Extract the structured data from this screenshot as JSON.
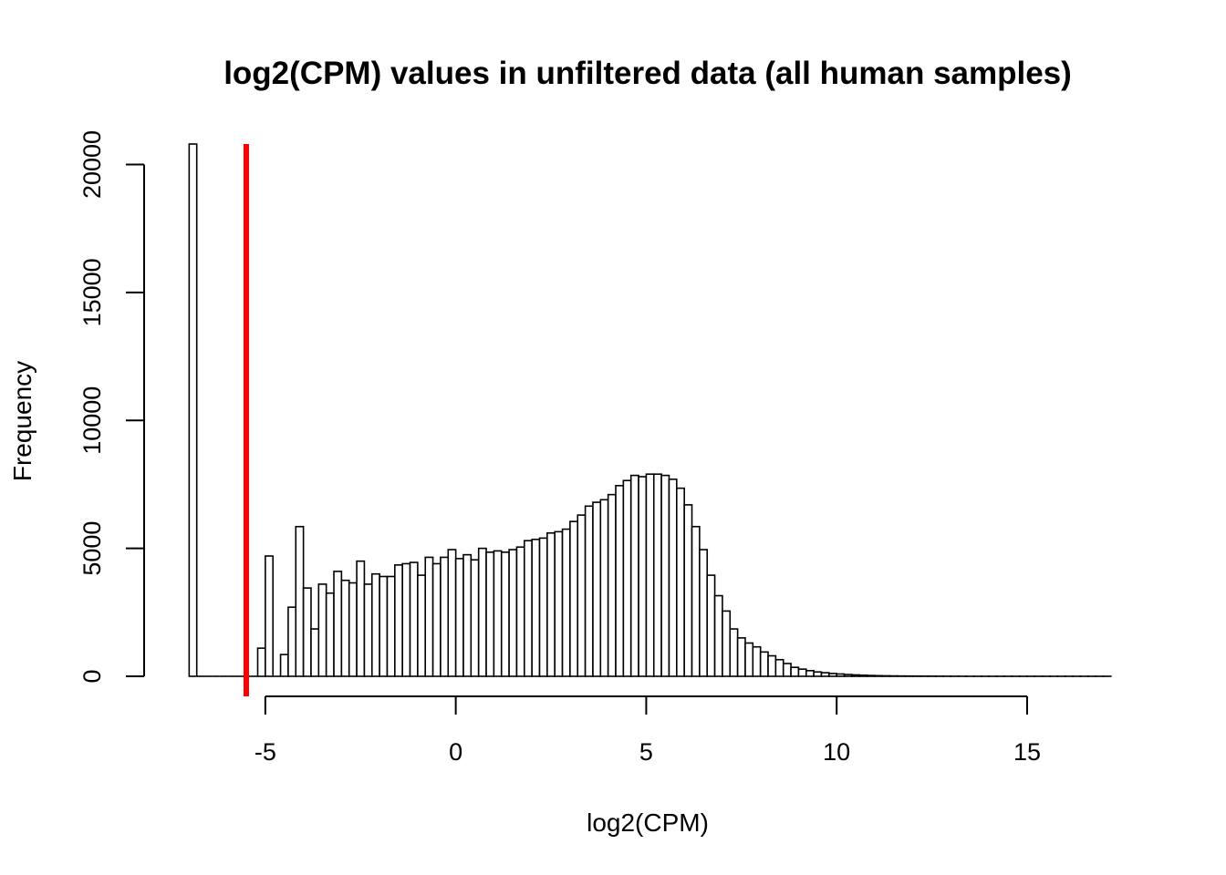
{
  "chart_data": {
    "type": "bar",
    "title": "log2(CPM) values in unfiltered data (all human samples)",
    "xlabel": "log2(CPM)",
    "ylabel": "Frequency",
    "xlim": [
      -7.2,
      17.3
    ],
    "ylim": [
      0,
      20800
    ],
    "x_ticks": [
      -5,
      0,
      5,
      10,
      15
    ],
    "x_tick_labels": [
      "-5",
      "0",
      "5",
      "10",
      "15"
    ],
    "y_ticks": [
      0,
      5000,
      10000,
      15000,
      20000
    ],
    "y_tick_labels": [
      "0",
      "5000",
      "10000",
      "15000",
      "20000"
    ],
    "bin_width": 0.2,
    "grid": false,
    "threshold_line": {
      "x": -5.5,
      "color": "#ff0000"
    },
    "bar_fill": "#ffffff",
    "bar_stroke": "#000000",
    "clipped_bar": {
      "bin_start": -7.0,
      "note": "exceeds y-axis top"
    },
    "bins_start": [
      -7.0,
      -6.8,
      -6.6,
      -6.4,
      -6.2,
      -6.0,
      -5.8,
      -5.6,
      -5.4,
      -5.2,
      -5.0,
      -4.8,
      -4.6,
      -4.4,
      -4.2,
      -4.0,
      -3.8,
      -3.6,
      -3.4,
      -3.2,
      -3.0,
      -2.8,
      -2.6,
      -2.4,
      -2.2,
      -2.0,
      -1.8,
      -1.6,
      -1.4,
      -1.2,
      -1.0,
      -0.8,
      -0.6,
      -0.4,
      -0.2,
      0.0,
      0.2,
      0.4,
      0.6,
      0.8,
      1.0,
      1.2,
      1.4,
      1.6,
      1.8,
      2.0,
      2.2,
      2.4,
      2.6,
      2.8,
      3.0,
      3.2,
      3.4,
      3.6,
      3.8,
      4.0,
      4.2,
      4.4,
      4.6,
      4.8,
      5.0,
      5.2,
      5.4,
      5.6,
      5.8,
      6.0,
      6.2,
      6.4,
      6.6,
      6.8,
      7.0,
      7.2,
      7.4,
      7.6,
      7.8,
      8.0,
      8.2,
      8.4,
      8.6,
      8.8,
      9.0,
      9.2,
      9.4,
      9.6,
      9.8,
      10.0,
      10.2,
      10.4,
      10.6,
      10.8,
      11.0,
      11.2,
      11.4,
      11.6,
      11.8,
      12.0,
      12.2,
      12.4,
      12.6,
      12.8,
      13.0,
      13.2,
      13.4,
      13.6,
      13.8,
      14.0,
      14.2,
      14.4,
      14.6,
      14.8,
      15.0,
      15.2,
      15.4,
      15.6,
      15.8,
      16.0,
      16.2,
      16.4,
      16.6,
      16.8,
      17.0
    ],
    "values": [
      22000,
      0,
      0,
      0,
      0,
      0,
      0,
      0,
      0,
      1100,
      4700,
      0,
      850,
      2700,
      5850,
      3450,
      1850,
      3600,
      3250,
      4100,
      3750,
      3650,
      4500,
      3600,
      4000,
      3900,
      3900,
      4350,
      4400,
      4450,
      3950,
      4650,
      4400,
      4650,
      4950,
      4600,
      4750,
      4550,
      5000,
      4850,
      4900,
      4850,
      4950,
      5050,
      5300,
      5350,
      5400,
      5600,
      5650,
      5750,
      6050,
      6300,
      6650,
      6800,
      6900,
      7100,
      7450,
      7650,
      7850,
      7800,
      7900,
      7900,
      7850,
      7700,
      7350,
      6700,
      5850,
      4950,
      3950,
      3150,
      2550,
      1850,
      1500,
      1300,
      1150,
      950,
      800,
      650,
      500,
      350,
      280,
      220,
      170,
      140,
      110,
      90,
      70,
      55,
      42,
      32,
      25,
      19,
      15,
      12,
      10,
      8,
      6,
      5,
      4,
      3,
      2,
      2,
      1,
      1,
      1,
      1,
      1,
      1,
      1,
      1,
      1,
      1,
      1,
      1,
      1,
      1,
      1,
      1,
      1,
      1,
      1
    ]
  }
}
